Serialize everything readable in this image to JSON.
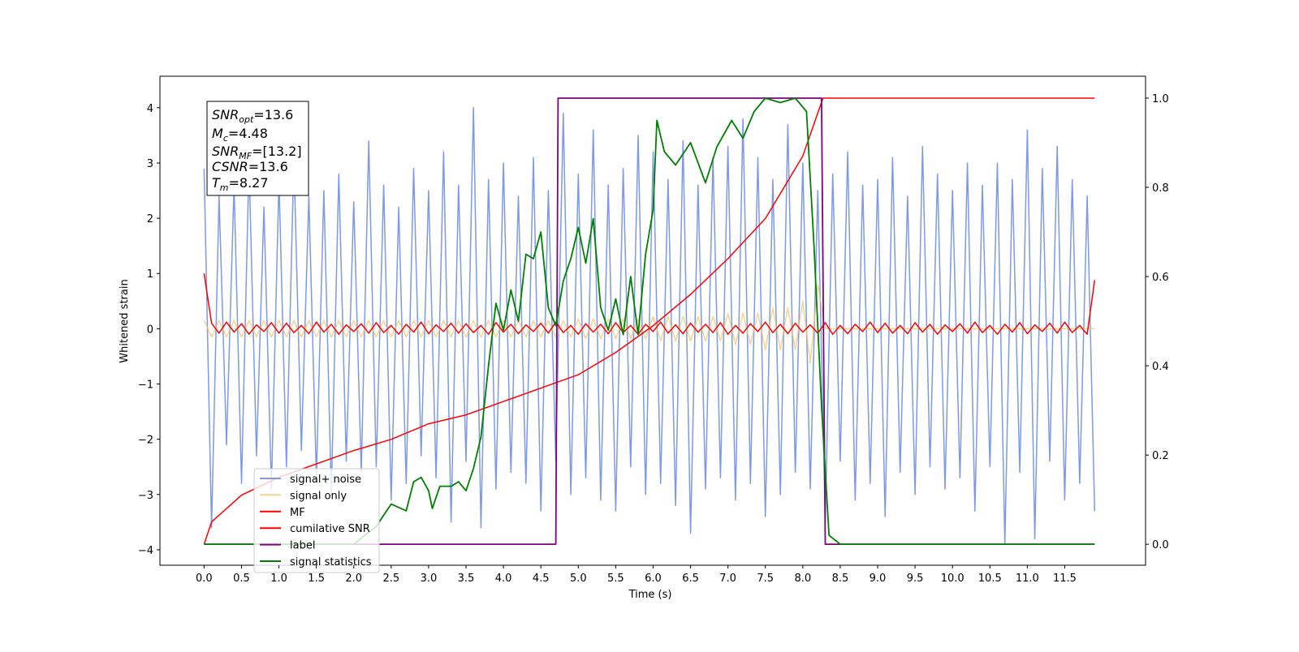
{
  "chart_data": {
    "type": "line",
    "xlabel": "Time (s)",
    "ylabel": "Whitened strain",
    "xlim": [
      -0.59,
      12.58
    ],
    "ylim": [
      -4.28,
      4.57
    ],
    "y2lim": [
      -0.047,
      1.049
    ],
    "xticks": [
      {
        "value": 0,
        "label": "0.0"
      },
      {
        "value": 0.5,
        "label": "0.5"
      },
      {
        "value": 1,
        "label": "1.0"
      },
      {
        "value": 1.5,
        "label": "1.5"
      },
      {
        "value": 2,
        "label": "2.0"
      },
      {
        "value": 2.5,
        "label": "2.5"
      },
      {
        "value": 3,
        "label": "3.0"
      },
      {
        "value": 3.5,
        "label": "3.5"
      },
      {
        "value": 4,
        "label": "4.0"
      },
      {
        "value": 4.5,
        "label": "4.5"
      },
      {
        "value": 5,
        "label": "5.0"
      },
      {
        "value": 5.5,
        "label": "5.5"
      },
      {
        "value": 6,
        "label": "6.0"
      },
      {
        "value": 6.5,
        "label": "6.5"
      },
      {
        "value": 7,
        "label": "7.0"
      },
      {
        "value": 7.5,
        "label": "7.5"
      },
      {
        "value": 8,
        "label": "8.0"
      },
      {
        "value": 8.5,
        "label": "8.5"
      },
      {
        "value": 9,
        "label": "9.0"
      },
      {
        "value": 9.5,
        "label": "9.5"
      },
      {
        "value": 10,
        "label": "10.0"
      },
      {
        "value": 10.5,
        "label": "10.5"
      },
      {
        "value": 11,
        "label": "11.0"
      },
      {
        "value": 11.5,
        "label": "11.5"
      }
    ],
    "yticks": [
      {
        "value": -4,
        "label": "−4"
      },
      {
        "value": -3,
        "label": "−3"
      },
      {
        "value": -2,
        "label": "−2"
      },
      {
        "value": -1,
        "label": "−1"
      },
      0,
      1,
      2,
      3,
      4
    ],
    "y2ticks": [
      {
        "value": 0,
        "label": "0.0"
      },
      {
        "value": 0.2,
        "label": "0.2"
      },
      {
        "value": 0.4,
        "label": "0.4"
      },
      {
        "value": 0.6,
        "label": "0.6"
      },
      {
        "value": 0.8,
        "label": "0.8"
      },
      {
        "value": 1,
        "label": "1.0"
      }
    ],
    "annotation": [
      {
        "main": "SNR",
        "sub": "opt",
        "text": "=13.6"
      },
      {
        "main": "M",
        "sub": "c",
        "text": "=4.48"
      },
      {
        "main": "SNR",
        "sub": "MF",
        "text": "=[13.2]"
      },
      {
        "main": "CSNR",
        "sub": "",
        "text": "=13.6"
      },
      {
        "main": "T",
        "sub": "m",
        "text": "=8.27"
      }
    ],
    "x": [
      0,
      0.1,
      0.2,
      0.3,
      0.4,
      0.5,
      0.6,
      0.7,
      0.8,
      0.9,
      1,
      1.1,
      1.2,
      1.3,
      1.4,
      1.5,
      1.6,
      1.7,
      1.8,
      1.9,
      2,
      2.1,
      2.2,
      2.3,
      2.4,
      2.5,
      2.6,
      2.7,
      2.8,
      2.9,
      3,
      3.1,
      3.2,
      3.3,
      3.4,
      3.5,
      3.6,
      3.7,
      3.8,
      3.9,
      4,
      4.1,
      4.2,
      4.3,
      4.4,
      4.5,
      4.6,
      4.7,
      4.8,
      4.9,
      5,
      5.1,
      5.2,
      5.3,
      5.4,
      5.5,
      5.6,
      5.7,
      5.8,
      5.9,
      6,
      6.1,
      6.2,
      6.3,
      6.4,
      6.5,
      6.6,
      6.7,
      6.8,
      6.9,
      7,
      7.1,
      7.2,
      7.3,
      7.4,
      7.5,
      7.6,
      7.7,
      7.8,
      7.9,
      8,
      8.1,
      8.2,
      8.3,
      8.4,
      8.5,
      8.6,
      8.7,
      8.8,
      8.9,
      9,
      9.1,
      9.2,
      9.3,
      9.4,
      9.5,
      9.6,
      9.7,
      9.8,
      9.9,
      10,
      10.1,
      10.2,
      10.3,
      10.4,
      10.5,
      10.6,
      10.7,
      10.8,
      10.9,
      11,
      11.1,
      11.2,
      11.3,
      11.4,
      11.5,
      11.6,
      11.7,
      11.8,
      11.9
    ],
    "series": [
      {
        "name": "signal+ noise",
        "color": "#6f8ee6",
        "values": [
          2.9,
          -3.6,
          2.4,
          -2.1,
          2.6,
          -2.8,
          3.0,
          -2.3,
          2.2,
          -2.9,
          2.7,
          -2.5,
          3.1,
          -2.2,
          2.4,
          -2.7,
          2.5,
          -3.0,
          2.8,
          -2.4,
          2.3,
          -2.6,
          3.4,
          -2.5,
          2.6,
          -3.1,
          2.2,
          -2.8,
          2.9,
          -2.3,
          2.5,
          -2.7,
          3.2,
          -3.5,
          2.6,
          -2.4,
          4.0,
          -3.6,
          2.7,
          -2.9,
          3.0,
          -2.6,
          2.4,
          -2.8,
          3.1,
          -3.3,
          2.5,
          -2.4,
          3.9,
          -3.0,
          2.8,
          -2.7,
          3.6,
          -3.1,
          2.6,
          -3.3,
          2.9,
          -2.5,
          3.5,
          -3.0,
          3.2,
          -2.8,
          2.7,
          -3.2,
          3.4,
          -3.7,
          2.6,
          -2.9,
          3.1,
          -2.7,
          3.3,
          -3.1,
          3.8,
          -2.8,
          3.1,
          -3.4,
          2.7,
          -3.0,
          3.7,
          -2.6,
          3.0,
          -2.9,
          2.5,
          -3.5,
          2.8,
          -2.4,
          3.2,
          -3.1,
          2.6,
          -2.8,
          2.7,
          -3.4,
          3.1,
          -2.6,
          2.4,
          -3.0,
          3.3,
          -2.5,
          2.8,
          -2.9,
          2.5,
          -2.7,
          3.0,
          -3.3,
          2.6,
          -2.5,
          3.0,
          -3.9,
          2.7,
          -2.6,
          3.6,
          -3.8,
          2.9,
          -2.4,
          3.3,
          -3.1,
          2.7,
          -2.8,
          2.4,
          -3.3
        ]
      },
      {
        "name": "signal only",
        "color": "#f5c76a",
        "values": [
          0.15,
          -0.15,
          0.15,
          -0.15,
          0.15,
          -0.15,
          0.15,
          -0.15,
          0.15,
          -0.15,
          0.15,
          -0.15,
          0.15,
          -0.15,
          0.15,
          -0.15,
          0.15,
          -0.15,
          0.15,
          -0.15,
          0.15,
          -0.15,
          0.15,
          -0.15,
          0.15,
          -0.15,
          0.15,
          -0.15,
          0.15,
          -0.15,
          0.15,
          -0.15,
          0.15,
          -0.15,
          0.15,
          -0.15,
          0.15,
          -0.15,
          0.15,
          -0.15,
          0.15,
          -0.15,
          0.15,
          -0.15,
          0.15,
          -0.15,
          0.15,
          -0.15,
          0.15,
          -0.15,
          0.18,
          -0.18,
          0.18,
          -0.18,
          0.18,
          -0.18,
          0.18,
          -0.18,
          0.18,
          -0.18,
          0.22,
          -0.22,
          0.22,
          -0.22,
          0.22,
          -0.22,
          0.22,
          -0.22,
          0.22,
          -0.22,
          0.28,
          -0.28,
          0.28,
          -0.28,
          0.28,
          -0.38,
          0.38,
          -0.38,
          0.38,
          -0.38,
          0.5,
          -0.62,
          0.8,
          0,
          0,
          0,
          0,
          0,
          0,
          0,
          0,
          0,
          0,
          0,
          0,
          0,
          0,
          0,
          0,
          0,
          0,
          0,
          0,
          0,
          0,
          0,
          0,
          0,
          0,
          0,
          0,
          0,
          0,
          0,
          0,
          0,
          0,
          0,
          0,
          0
        ]
      },
      {
        "name": "MF",
        "color": "#ff0000",
        "values": [
          1.0,
          0.1,
          -0.08,
          0.12,
          -0.06,
          0.09,
          -0.1,
          0.07,
          -0.05,
          0.11,
          -0.08,
          0.1,
          -0.07,
          0.06,
          -0.09,
          0.12,
          -0.06,
          0.08,
          -0.1,
          0.07,
          -0.05,
          0.09,
          -0.08,
          0.11,
          -0.07,
          0.06,
          -0.1,
          0.08,
          -0.06,
          0.12,
          -0.09,
          0.07,
          -0.05,
          0.1,
          -0.08,
          0.09,
          -0.07,
          0.06,
          -0.1,
          0.11,
          -0.06,
          0.08,
          -0.09,
          0.07,
          -0.05,
          0.1,
          -0.08,
          0.12,
          -0.07,
          0.06,
          -0.1,
          0.09,
          -0.06,
          0.08,
          -0.09,
          0.11,
          -0.07,
          0.06,
          -0.1,
          0.08,
          -0.05,
          0.12,
          -0.08,
          0.07,
          -0.09,
          0.1,
          -0.06,
          0.08,
          -0.07,
          0.11,
          -0.1,
          0.06,
          -0.08,
          0.09,
          -0.05,
          0.12,
          -0.07,
          0.08,
          -0.09,
          0.1,
          -0.06,
          0.07,
          -0.08,
          0.11,
          -0.1,
          0.06,
          -0.09,
          0.08,
          -0.05,
          0.12,
          -0.07,
          0.1,
          -0.08,
          0.06,
          -0.09,
          0.11,
          -0.06,
          0.08,
          -0.1,
          0.07,
          -0.05,
          0.09,
          -0.08,
          0.12,
          -0.07,
          0.06,
          -0.1,
          0.08,
          -0.06,
          0.11,
          -0.09,
          0.07,
          -0.05,
          0.1,
          -0.08,
          0.12,
          -0.07,
          0.06,
          -0.1,
          0.88
        ]
      },
      {
        "name": "cumilative SNR",
        "color": "#ff0000",
        "axis": "y2",
        "x": [
          0,
          0.1,
          0.5,
          1,
          1.5,
          2,
          2.5,
          3,
          3.5,
          4,
          4.5,
          5,
          5.5,
          6,
          6.5,
          7,
          7.5,
          8,
          8.27,
          9,
          10,
          11,
          11.9
        ],
        "values": [
          0,
          0.05,
          0.11,
          0.15,
          0.18,
          0.21,
          0.235,
          0.27,
          0.29,
          0.32,
          0.35,
          0.38,
          0.43,
          0.49,
          0.56,
          0.64,
          0.73,
          0.87,
          1.0,
          1.0,
          1.0,
          1.0,
          1.0
        ]
      },
      {
        "name": "label",
        "color": "#800080",
        "axis": "y2",
        "x": [
          0,
          4.7,
          4.73,
          8.25,
          8.3,
          11.9
        ],
        "values": [
          0,
          0,
          1,
          1,
          0,
          0
        ]
      },
      {
        "name": "signal statistics",
        "color": "#008000",
        "axis": "y2",
        "x": [
          0,
          2,
          2.3,
          2.5,
          2.7,
          2.8,
          2.9,
          3,
          3.05,
          3.15,
          3.3,
          3.4,
          3.5,
          3.6,
          3.7,
          3.8,
          3.9,
          4,
          4.1,
          4.2,
          4.3,
          4.4,
          4.5,
          4.6,
          4.7,
          4.8,
          4.9,
          5,
          5.1,
          5.2,
          5.3,
          5.4,
          5.5,
          5.6,
          5.7,
          5.8,
          5.9,
          6,
          6.05,
          6.15,
          6.3,
          6.5,
          6.7,
          6.85,
          7.05,
          7.2,
          7.35,
          7.5,
          7.7,
          7.9,
          8.05,
          8.15,
          8.25,
          8.35,
          8.5,
          11.9
        ],
        "values": [
          0,
          0,
          0.04,
          0.09,
          0.075,
          0.14,
          0.15,
          0.12,
          0.08,
          0.13,
          0.13,
          0.14,
          0.12,
          0.17,
          0.24,
          0.4,
          0.54,
          0.48,
          0.57,
          0.5,
          0.65,
          0.64,
          0.7,
          0.53,
          0.49,
          0.59,
          0.64,
          0.71,
          0.63,
          0.73,
          0.53,
          0.48,
          0.55,
          0.47,
          0.6,
          0.47,
          0.65,
          0.75,
          0.95,
          0.88,
          0.85,
          0.9,
          0.81,
          0.89,
          0.95,
          0.91,
          0.97,
          1.0,
          0.99,
          1.0,
          0.97,
          0.67,
          0.31,
          0.02,
          0,
          0
        ]
      }
    ]
  }
}
